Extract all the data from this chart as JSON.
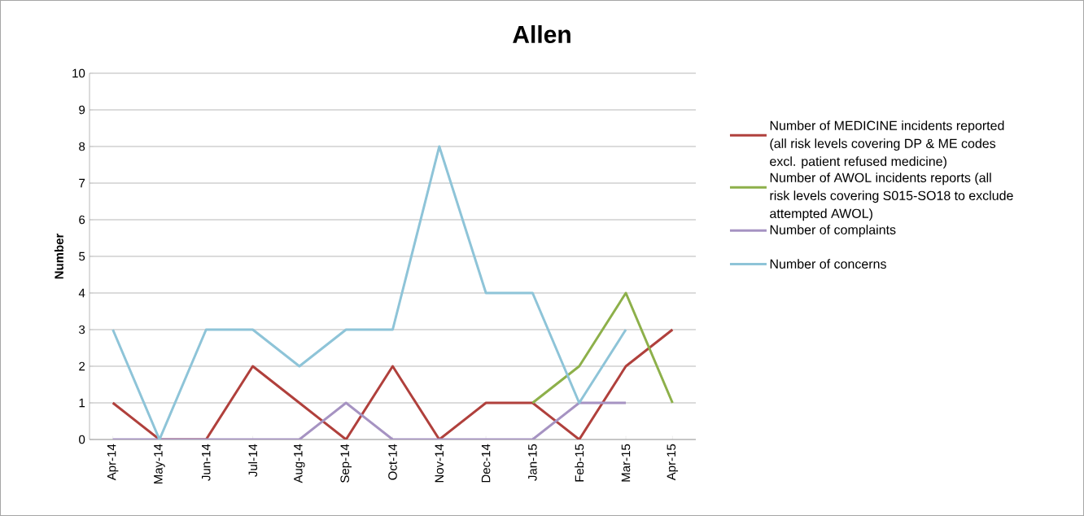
{
  "chart_data": {
    "type": "line",
    "title": "Allen",
    "ylabel": "Number",
    "categories": [
      "Apr-14",
      "May-14",
      "Jun-14",
      "Jul-14",
      "Aug-14",
      "Sep-14",
      "Oct-14",
      "Nov-14",
      "Dec-14",
      "Jan-15",
      "Feb-15",
      "Mar-15",
      "Apr-15"
    ],
    "series": [
      {
        "name": "Number of MEDICINE incidents reported (all risk levels covering DP & ME codes excl. patient refused medicine)",
        "color": "#b0403c",
        "values": [
          1,
          0,
          0,
          2,
          1,
          0,
          2,
          0,
          1,
          1,
          0,
          2,
          3
        ]
      },
      {
        "name": "Number of AWOL incidents reports (all risk levels covering S015-SO18 to exclude attempted AWOL)",
        "color": "#8db04a",
        "values": [
          null,
          null,
          null,
          null,
          null,
          null,
          null,
          null,
          null,
          1,
          2,
          4,
          1
        ]
      },
      {
        "name": "Number of complaints",
        "color": "#a693c2",
        "values": [
          0,
          0,
          0,
          0,
          0,
          1,
          0,
          0,
          0,
          0,
          1,
          1,
          null
        ]
      },
      {
        "name": "Number of concerns",
        "color": "#8ec4d8",
        "values": [
          3,
          0,
          3,
          3,
          2,
          3,
          3,
          8,
          4,
          4,
          1,
          3,
          null
        ]
      }
    ],
    "ylim": [
      0,
      10
    ],
    "yticks": [
      0,
      1,
      2,
      3,
      4,
      5,
      6,
      7,
      8,
      9,
      10
    ],
    "grid": "y",
    "legend": "right",
    "marker": "none",
    "line_style": "solid"
  }
}
